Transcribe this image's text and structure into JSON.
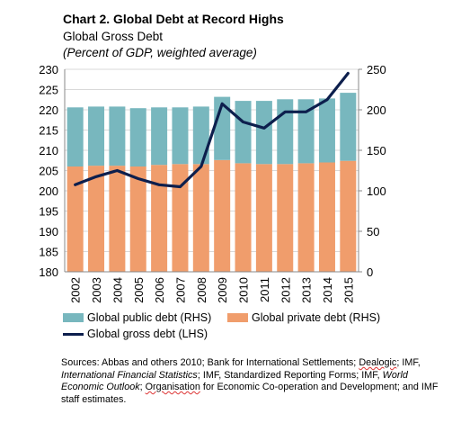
{
  "header": {
    "title": "Chart 2. Global Debt at Record Highs",
    "subtitle": "Global Gross Debt",
    "unit": "(Percent of GDP, weighted average)"
  },
  "colors": {
    "public": "#78b7be",
    "private": "#f09d6c",
    "gross": "#0d1f4d",
    "grid": "#d9d9d9",
    "axis": "#888888"
  },
  "chart_data": {
    "type": "bar+line",
    "categories": [
      "2002",
      "2003",
      "2004",
      "2005",
      "2006",
      "2007",
      "2008",
      "2009",
      "2010",
      "2011",
      "2012",
      "2013",
      "2014",
      "2015"
    ],
    "series": [
      {
        "name": "Global public debt (RHS)",
        "axis": "right",
        "kind": "stacked-bar",
        "values": [
          73,
          73,
          73,
          72,
          71,
          70,
          71,
          78,
          77,
          78,
          80,
          79,
          79,
          84
        ]
      },
      {
        "name": "Global private debt (RHS)",
        "axis": "right",
        "kind": "stacked-bar",
        "values": [
          130,
          131,
          131,
          130,
          132,
          133,
          133,
          138,
          134,
          133,
          133,
          134,
          135,
          137
        ]
      },
      {
        "name": "Global gross debt (LHS)",
        "axis": "left",
        "kind": "line",
        "values": [
          201.5,
          203.5,
          205,
          203,
          201.5,
          201,
          206,
          221.5,
          217,
          215.5,
          219.5,
          219.5,
          222.5,
          229
        ]
      }
    ],
    "left_axis": {
      "min": 180,
      "max": 230,
      "step": 5,
      "ticks": [
        "180",
        "185",
        "190",
        "195",
        "200",
        "205",
        "210",
        "215",
        "220",
        "225",
        "230"
      ]
    },
    "right_axis": {
      "min": 0,
      "max": 250,
      "step": 50,
      "ticks": [
        "0",
        "50",
        "100",
        "150",
        "200",
        "250"
      ]
    },
    "grid": true,
    "legend_position": "bottom"
  },
  "legend": {
    "public": "Global public debt (RHS)",
    "private": "Global private debt (RHS)",
    "gross": "Global gross debt (LHS)"
  },
  "sources": {
    "prefix": "Sources: Abbas and others 2010; Bank for International Settlements; ",
    "dealogic": "Dealogic",
    "part2": "; IMF, ",
    "ifs": "International Financial Statistics",
    "part3": "; IMF, Standardized Reporting Forms; IMF, ",
    "weo": "World Economic Outlook",
    "part4": "; ",
    "organisation": "Organisation",
    "part5": " for Economic Co-operation and Development; and IMF staff estimates."
  }
}
